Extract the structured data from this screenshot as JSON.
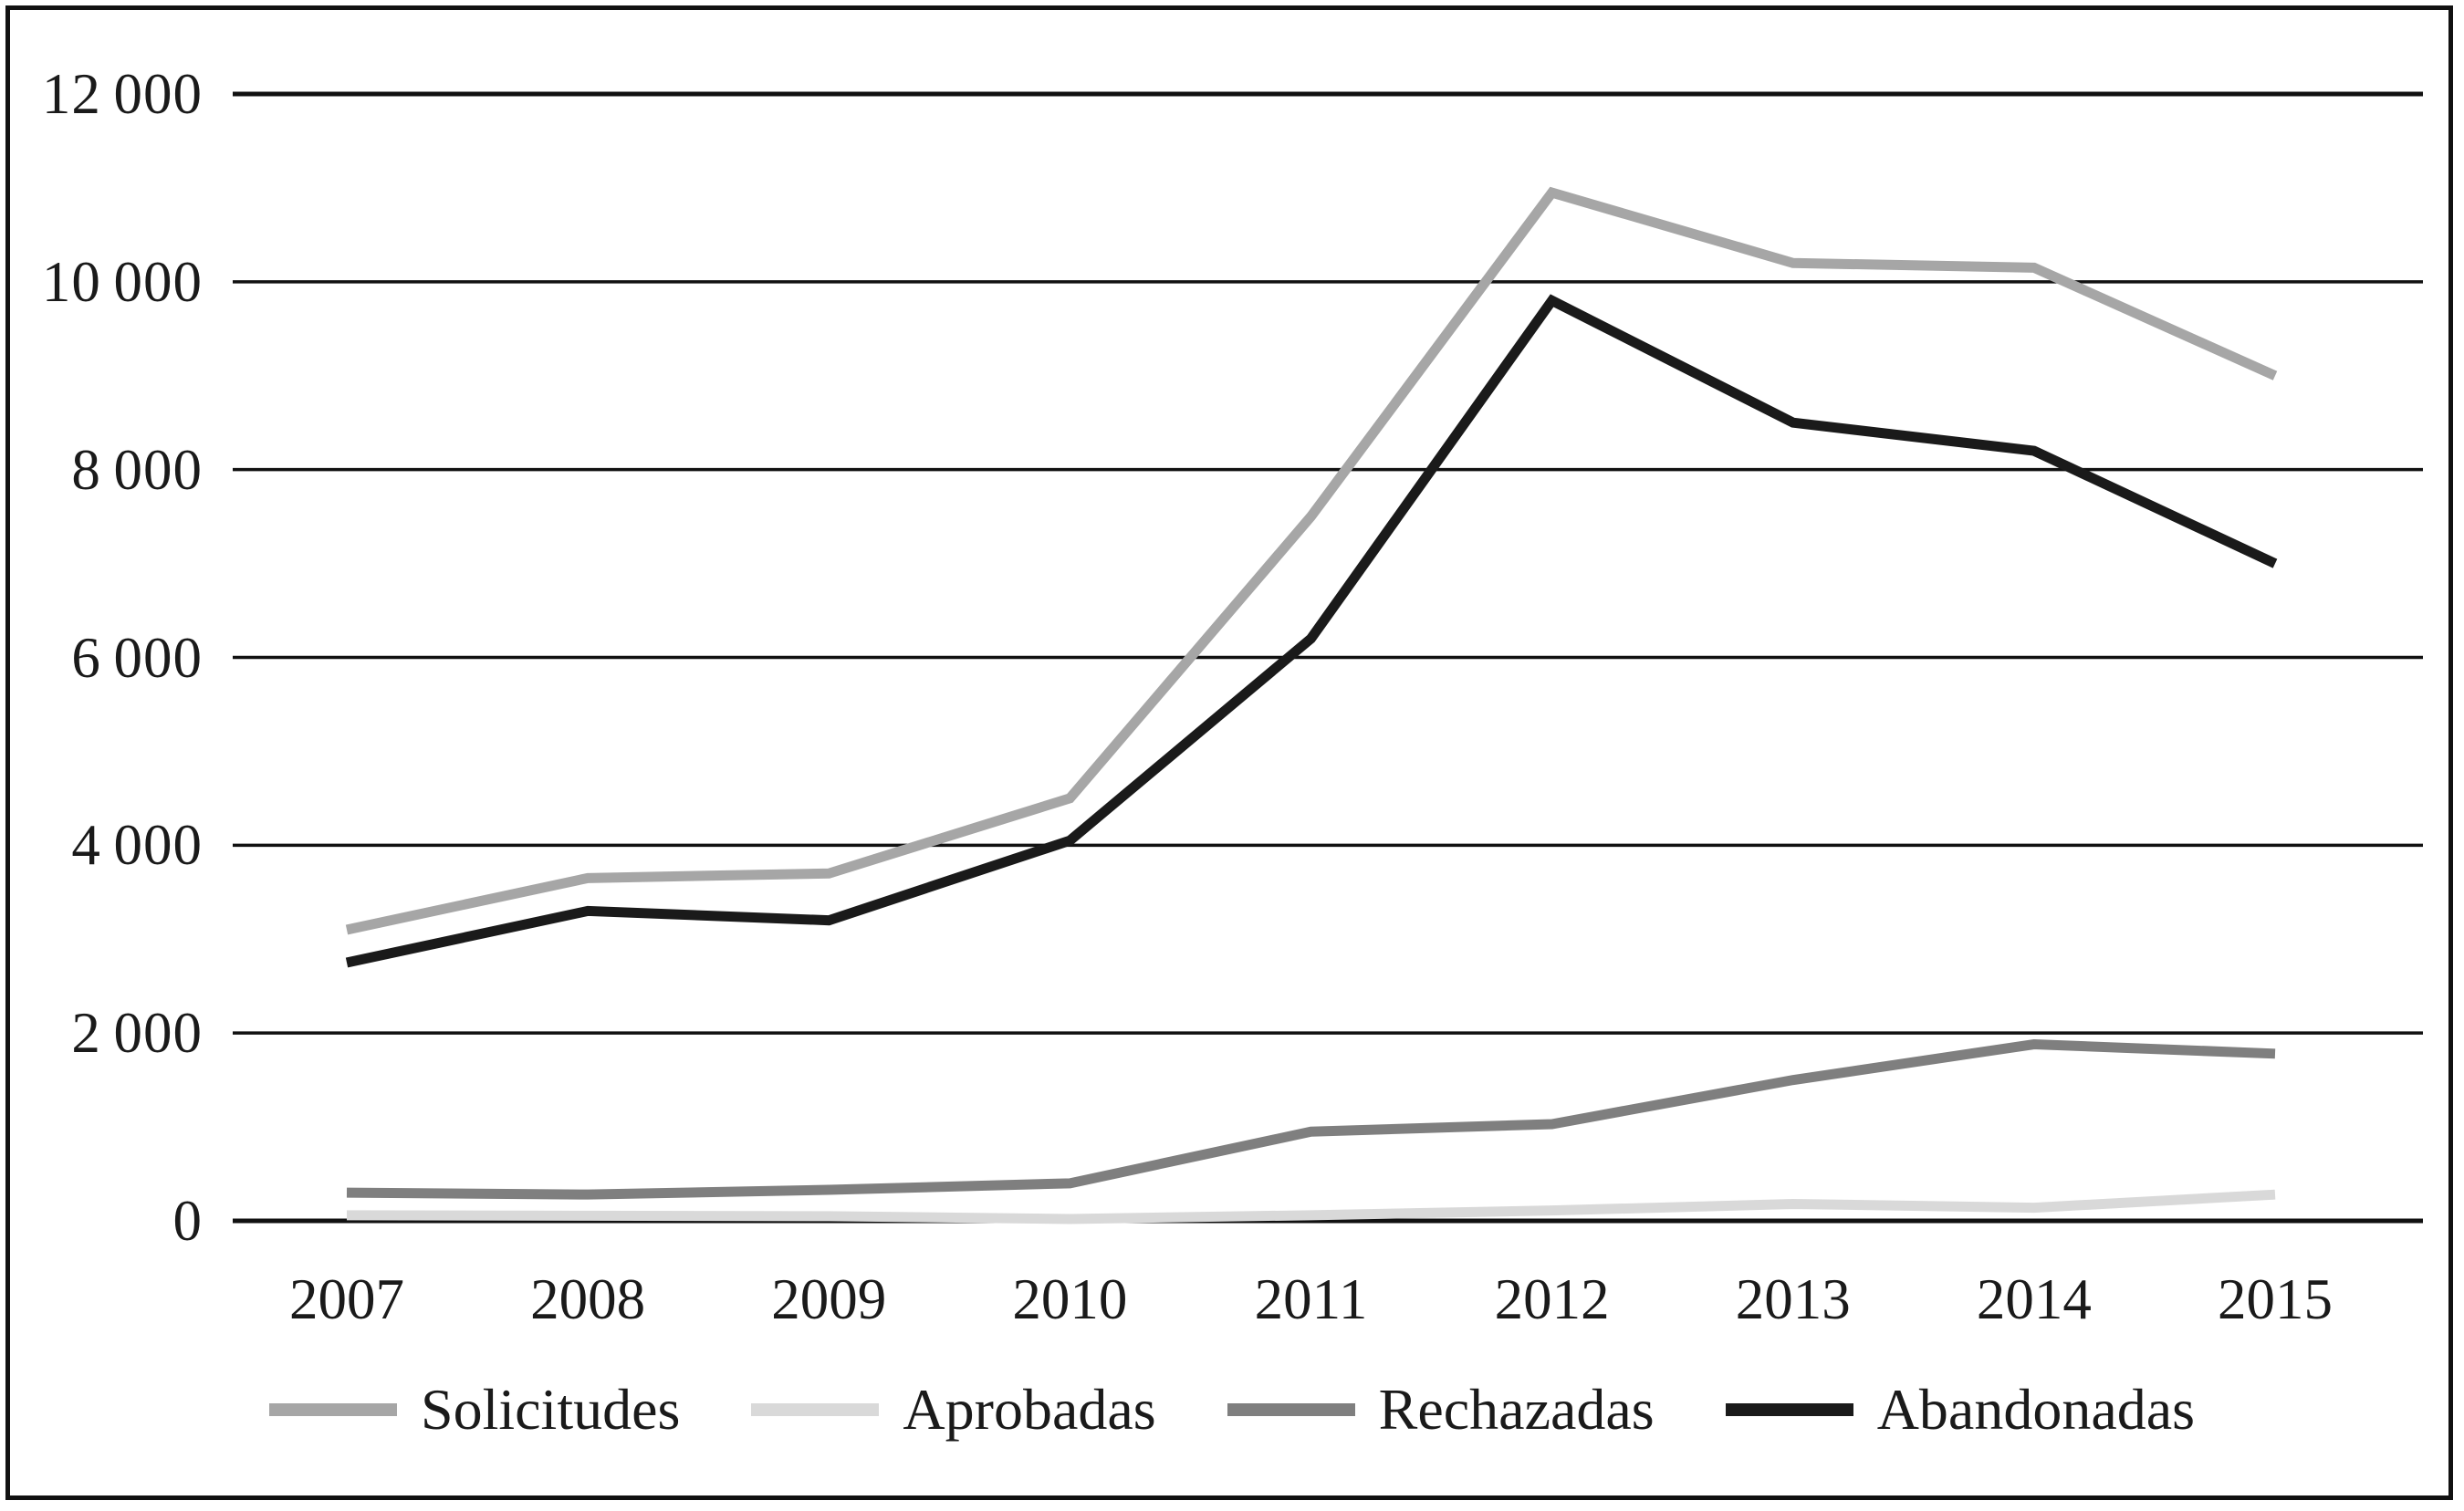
{
  "chart_data": {
    "type": "line",
    "title": "",
    "xlabel": "",
    "ylabel": "",
    "x_labels": [
      "2007",
      "2008",
      "2009",
      "2010",
      "2011",
      "2012",
      "2013",
      "2014",
      "2015"
    ],
    "series": [
      {
        "name": "Solicitudes",
        "color": "#a6a6a6",
        "values": [
          3100,
          3650,
          3700,
          4500,
          7500,
          10950,
          10200,
          10150,
          9000
        ]
      },
      {
        "name": "Aprobadas",
        "color": "#d9d9d9",
        "values": [
          60,
          55,
          50,
          20,
          60,
          110,
          180,
          140,
          280
        ]
      },
      {
        "name": "Rechazadas",
        "color": "#7f7f7f",
        "values": [
          300,
          280,
          330,
          400,
          950,
          1030,
          1500,
          1880,
          1780
        ]
      },
      {
        "name": "Abandonadas",
        "color": "#1a1a1a",
        "values": [
          2750,
          3300,
          3200,
          4050,
          6200,
          9800,
          8500,
          8200,
          7000
        ]
      }
    ],
    "y_ticks": [
      0,
      2000,
      4000,
      6000,
      8000,
      10000,
      12000
    ],
    "y_tick_labels": [
      "0",
      "2 000",
      "4 000",
      "6 000",
      "8 000",
      "10 000",
      "12 000"
    ],
    "ylim": [
      0,
      12000
    ],
    "grid": "horizontal",
    "gridline_color": "#111111",
    "legend_position": "bottom"
  }
}
